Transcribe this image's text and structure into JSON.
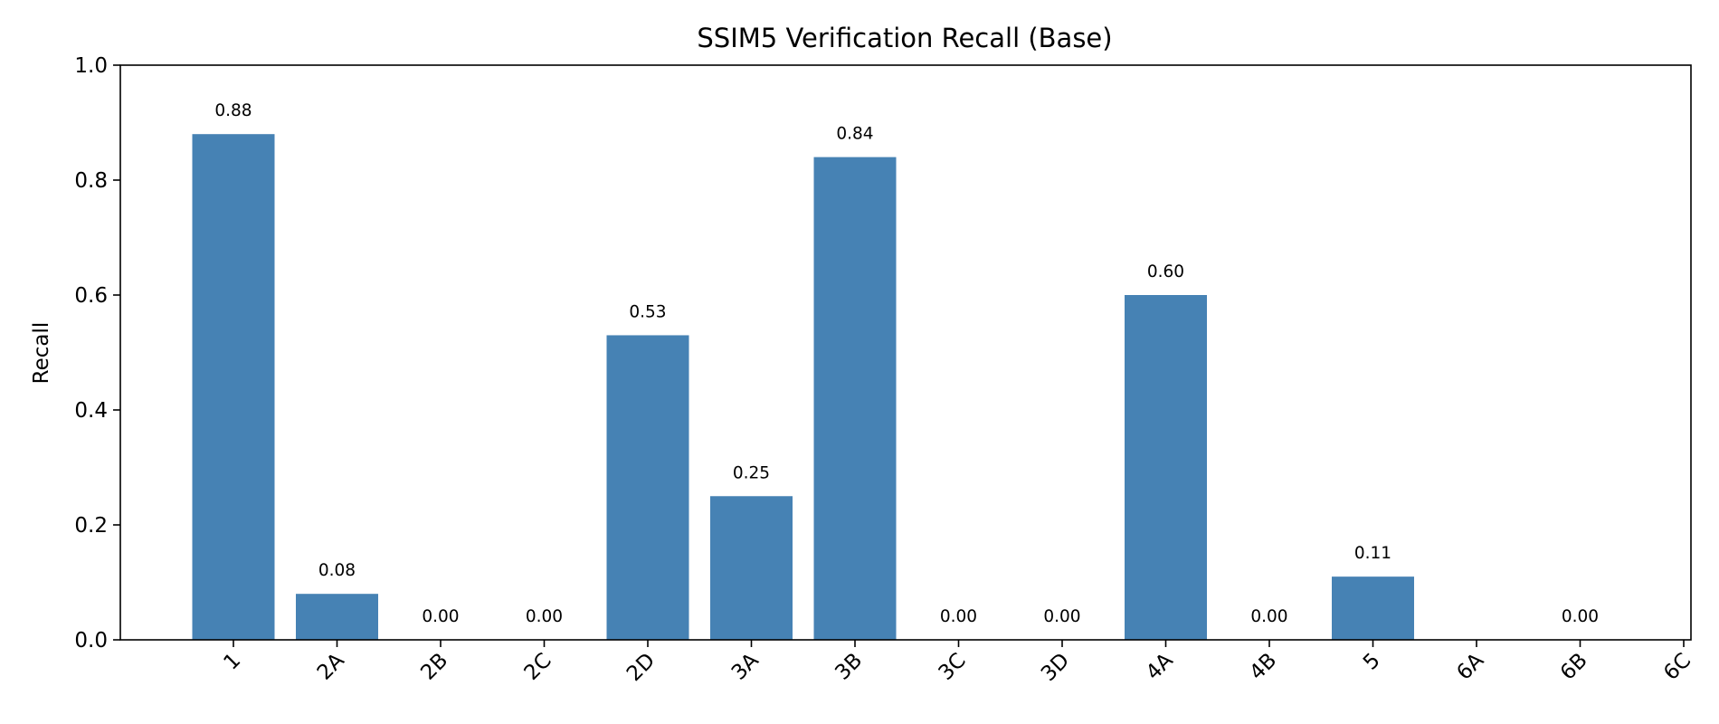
{
  "chart_data": {
    "type": "bar",
    "title": "SSIM5 Verification Recall (Base)",
    "xlabel": "",
    "ylabel": "Recall",
    "ylim": [
      0,
      1.0
    ],
    "yticks": [
      "0.0",
      "0.2",
      "0.4",
      "0.6",
      "0.8",
      "1.0"
    ],
    "grid": false,
    "color": "#4682b4",
    "categories": [
      "1",
      "2A",
      "2B",
      "2C",
      "2D",
      "3A",
      "3B",
      "3C",
      "3D",
      "4A",
      "4B",
      "5",
      "6A",
      "6B",
      "6C"
    ],
    "values": [
      0.88,
      0.08,
      0.0,
      0.0,
      0.53,
      0.25,
      0.84,
      0.0,
      0.0,
      0.6,
      0.0,
      0.11,
      null,
      0.0,
      null
    ],
    "data_labels": [
      "0.88",
      "0.08",
      "0.00",
      "0.00",
      "0.53",
      "0.25",
      "0.84",
      "0.00",
      "0.00",
      "0.60",
      "0.00",
      "0.11",
      "",
      "0.00",
      ""
    ]
  }
}
